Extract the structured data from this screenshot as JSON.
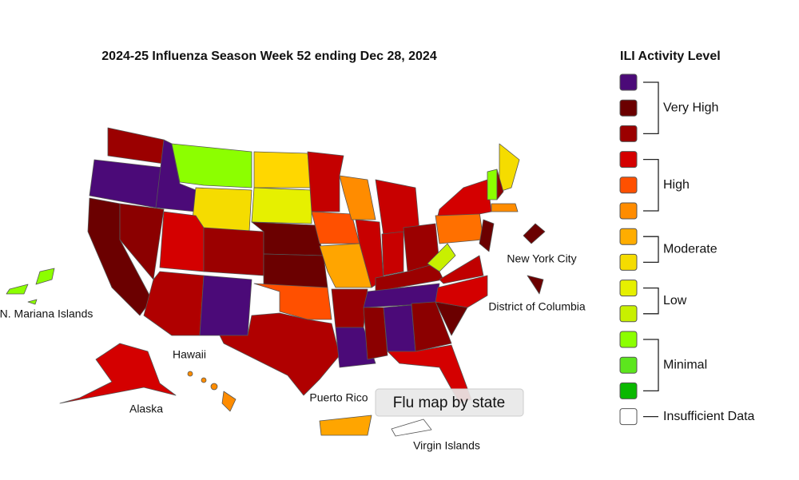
{
  "title": "2024-25 Influenza Season Week 52 ending Dec 28, 2024",
  "map_labels": {
    "mariana": "N. Mariana Islands",
    "hawaii": "Hawaii",
    "alaska": "Alaska",
    "puerto_rico": "Puerto Rico",
    "virgin_islands": "Virgin Islands",
    "nyc": "New York City",
    "dc": "District of Columbia"
  },
  "tooltip": "Flu map by state",
  "legend": {
    "title": "ILI Activity Level",
    "groups": [
      {
        "label": "Very High",
        "colors": [
          "#4b0a78",
          "#6b0000",
          "#9b0000"
        ]
      },
      {
        "label": "High",
        "colors": [
          "#d40000",
          "#ff5000",
          "#ff8c00"
        ]
      },
      {
        "label": "Moderate",
        "colors": [
          "#ffad00",
          "#f5dc00"
        ]
      },
      {
        "label": "Low",
        "colors": [
          "#e6f000",
          "#c8f000"
        ]
      },
      {
        "label": "Minimal",
        "colors": [
          "#8cff00",
          "#5ce61d",
          "#0ab800"
        ]
      },
      {
        "label": "Insufficient Data",
        "colors": [
          "#ffffff"
        ]
      }
    ]
  }
}
